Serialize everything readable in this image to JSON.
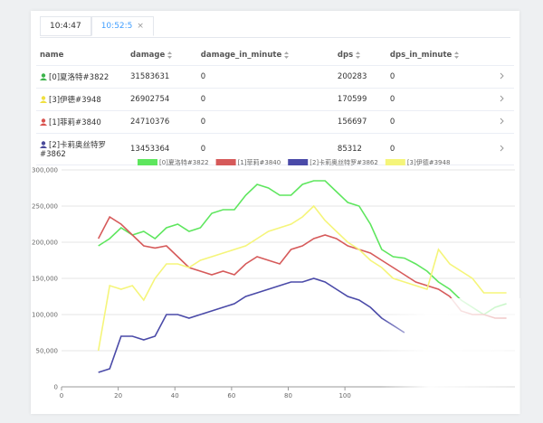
{
  "tabs": [
    "10:4:47",
    "10:52:5"
  ],
  "table": {
    "columns": [
      "name",
      "damage",
      "damage_in_minute",
      "dps",
      "dps_in_minute"
    ],
    "rows": [
      [
        "[0]夏洛特#3822",
        "31583631",
        "0",
        "200283",
        "0"
      ],
      [
        "[3]伊德#3948",
        "26902754",
        "0",
        "170599",
        "0"
      ],
      [
        "[1]菲莉#3840",
        "24710376",
        "0",
        "156697",
        "0"
      ],
      [
        "[2]卡莉奥丝特罗#3862",
        "13453364",
        "0",
        "85312",
        "0"
      ]
    ],
    "icon_colors": [
      "#3cb44b",
      "#f0e040",
      "#d9534f",
      "#4a4a9a"
    ]
  },
  "chart_data": {
    "type": "line",
    "x": [
      13,
      17,
      21,
      25,
      29,
      33,
      37,
      41,
      45,
      49,
      53,
      57,
      61,
      65,
      69,
      73,
      77,
      81,
      85,
      89,
      93,
      97,
      101,
      105,
      109,
      113,
      117,
      121,
      125,
      129,
      133,
      137,
      141,
      145,
      149,
      153,
      157
    ],
    "series": [
      {
        "name": "[0]夏洛特#3822",
        "color": "#5ee65e",
        "values": [
          195000,
          205000,
          220000,
          210000,
          215000,
          205000,
          220000,
          225000,
          215000,
          220000,
          240000,
          245000,
          245000,
          265000,
          280000,
          275000,
          265000,
          265000,
          280000,
          285000,
          285000,
          270000,
          255000,
          250000,
          225000,
          190000,
          180000,
          178000,
          170000,
          160000,
          145000,
          135000,
          120000,
          110000,
          100000,
          110000,
          115000
        ]
      },
      {
        "name": "[1]菲莉#3840",
        "color": "#d65a5a",
        "values": [
          205000,
          235000,
          225000,
          210000,
          195000,
          192000,
          195000,
          180000,
          165000,
          160000,
          155000,
          160000,
          155000,
          170000,
          180000,
          175000,
          170000,
          190000,
          195000,
          205000,
          210000,
          205000,
          195000,
          190000,
          185000,
          175000,
          165000,
          155000,
          145000,
          140000,
          135000,
          125000,
          105000,
          100000,
          100000,
          95000,
          95000
        ]
      },
      {
        "name": "[2]卡莉奥丝特罗#3862",
        "color": "#4a4aa8",
        "values": [
          20000,
          25000,
          70000,
          70000,
          65000,
          70000,
          100000,
          100000,
          95000,
          100000,
          105000,
          110000,
          115000,
          125000,
          130000,
          135000,
          140000,
          145000,
          145000,
          150000,
          145000,
          135000,
          125000,
          120000,
          110000,
          95000,
          85000,
          75000,
          null,
          null,
          null,
          null,
          null,
          null,
          null,
          null,
          null
        ]
      },
      {
        "name": "[3]伊德#3948",
        "color": "#f5f57a",
        "values": [
          50000,
          140000,
          135000,
          140000,
          120000,
          150000,
          170000,
          170000,
          165000,
          175000,
          180000,
          185000,
          190000,
          195000,
          205000,
          215000,
          220000,
          225000,
          235000,
          250000,
          230000,
          215000,
          200000,
          190000,
          175000,
          165000,
          150000,
          145000,
          140000,
          135000,
          190000,
          170000,
          160000,
          150000,
          130000,
          130000,
          130000
        ]
      }
    ],
    "xlim": [
      0,
      160
    ],
    "xticks": [
      0,
      20,
      40,
      60,
      80,
      100
    ],
    "ylim": [
      0,
      300000
    ],
    "yticks": [
      0,
      {
        "value": 50000,
        "label": "50,000"
      },
      {
        "value": 100000,
        "label": "100,000"
      },
      {
        "value": 150000,
        "label": "150,000"
      },
      {
        "value": 200000,
        "label": "200,000"
      },
      {
        "value": 250000,
        "label": "250,000"
      },
      {
        "value": 300000,
        "label": "300,000"
      }
    ],
    "grid": true
  }
}
